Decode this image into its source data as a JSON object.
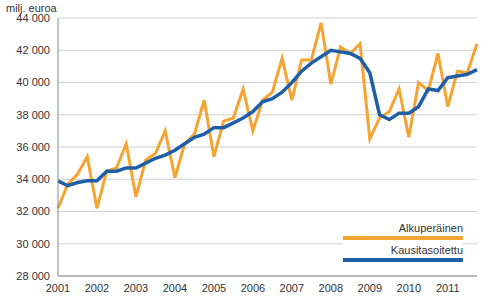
{
  "chart_data": {
    "type": "line",
    "y_label": "milj. euroa",
    "categories": [
      "2001",
      null,
      null,
      null,
      "2002",
      null,
      null,
      null,
      "2003",
      null,
      null,
      null,
      "2004",
      null,
      null,
      null,
      "2005",
      null,
      null,
      null,
      "2006",
      null,
      null,
      null,
      "2007",
      null,
      null,
      null,
      "2008",
      null,
      null,
      null,
      "2009",
      null,
      null,
      null,
      "2010",
      null,
      null,
      null,
      "2011",
      null,
      null,
      null
    ],
    "series": [
      {
        "name": "Alkuperäinen",
        "color": "#f5a431",
        "values": [
          32200,
          33700,
          34300,
          35400,
          32200,
          34500,
          34700,
          36200,
          32900,
          35200,
          35600,
          37000,
          34100,
          36200,
          36800,
          38900,
          35400,
          37600,
          37800,
          39600,
          37000,
          38900,
          39400,
          41500,
          38900,
          41400,
          41400,
          43700,
          39900,
          42200,
          41800,
          42400,
          36500,
          37800,
          38200,
          39600,
          36600,
          40000,
          39500,
          41800,
          38500,
          40700,
          40600,
          42400
        ]
      },
      {
        "name": "Kausitasoitettu",
        "color": "#1f5fa8",
        "values": [
          33900,
          33600,
          33800,
          33900,
          33900,
          34500,
          34500,
          34700,
          34700,
          35000,
          35300,
          35500,
          35800,
          36200,
          36600,
          36800,
          37200,
          37200,
          37500,
          37800,
          38200,
          38800,
          39000,
          39400,
          40000,
          40700,
          41200,
          41600,
          42000,
          41900,
          41800,
          41500,
          40600,
          38000,
          37700,
          38100,
          38100,
          38500,
          39600,
          39500,
          40300,
          40400,
          40500,
          40800
        ]
      }
    ],
    "ylim": [
      28000,
      44000
    ],
    "yticks": [
      {
        "value": 28000,
        "label": "28 000"
      },
      {
        "value": 30000,
        "label": "30 000"
      },
      {
        "value": 32000,
        "label": "32 000"
      },
      {
        "value": 34000,
        "label": "34 000"
      },
      {
        "value": 36000,
        "label": "36 000"
      },
      {
        "value": 38000,
        "label": "38 000"
      },
      {
        "value": 40000,
        "label": "40 000"
      },
      {
        "value": 42000,
        "label": "42 000"
      },
      {
        "value": 44000,
        "label": "44 000"
      }
    ],
    "grid": true,
    "legend": "lower right"
  }
}
